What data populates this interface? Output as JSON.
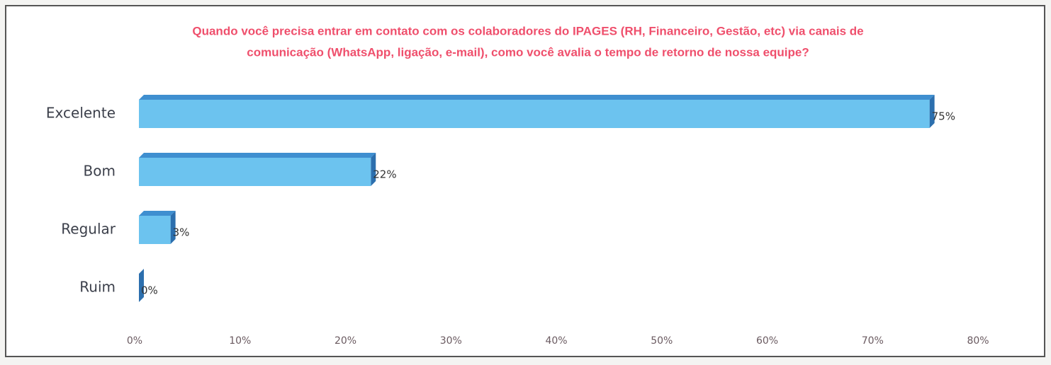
{
  "chart_data": {
    "type": "bar",
    "orientation": "horizontal",
    "title": [
      "Quando você precisa entrar em contato com os colaboradores do IPAGES (RH, Financeiro, Gestão, etc) via canais de",
      "comunicação (WhatsApp, ligação, e-mail), como você avalia o tempo de retorno de nossa equipe?"
    ],
    "categories": [
      "Excelente",
      "Bom",
      "Regular",
      "Ruim"
    ],
    "values": [
      75,
      22,
      3,
      0
    ],
    "value_labels": [
      "75%",
      "22%",
      "3%",
      "0%"
    ],
    "color": "#6cc3ef",
    "xlim": [
      0,
      80
    ],
    "xticks": [
      {
        "value": 0,
        "label": "0%"
      },
      {
        "value": 10,
        "label": "10%"
      },
      {
        "value": 20,
        "label": "20%"
      },
      {
        "value": 30,
        "label": "30%"
      },
      {
        "value": 40,
        "label": "40%"
      },
      {
        "value": 50,
        "label": "50%"
      },
      {
        "value": 60,
        "label": "60%"
      },
      {
        "value": 70,
        "label": "70%"
      },
      {
        "value": 80,
        "label": "80%"
      }
    ],
    "grid": false
  }
}
